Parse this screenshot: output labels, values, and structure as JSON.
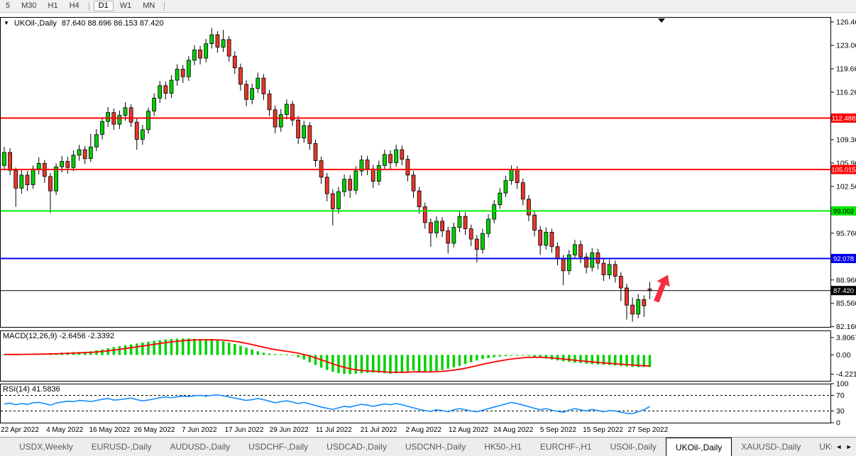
{
  "toolbar": {
    "items": [
      {
        "label": "5"
      },
      {
        "label": "M30"
      },
      {
        "label": "H1"
      },
      {
        "label": "H4"
      },
      {
        "sep": true
      },
      {
        "label": "D1",
        "active": true
      },
      {
        "label": "W1"
      },
      {
        "label": "MN"
      },
      {
        "sep": true
      }
    ]
  },
  "chart_header": {
    "collapse_icon": "▼",
    "symbol": "UKOil-,Daily",
    "ohlc": "87.640 88.696 86.153 87.420"
  },
  "indicators": {
    "macd_label": "MACD(12,26,9) -2.6456 -2.3392",
    "rsi_label": "RSI(14) 41.5836"
  },
  "axes": {
    "price_ticks": [
      "126.460",
      "123.060",
      "119.660",
      "116.260",
      "109.360",
      "105.960",
      "102.560",
      "95.760",
      "88.960",
      "85.560",
      "82.160"
    ],
    "macd_ticks": [
      "3.8067",
      "0.00",
      "-4.221"
    ],
    "rsi_ticks": [
      "100",
      "70",
      "30",
      "0"
    ],
    "date_ticks": [
      "22 Apr 2022",
      "4 May 2022",
      "16 May 2022",
      "26 May 2022",
      "7 Jun 2022",
      "17 Jun 2022",
      "29 Jun 2022",
      "11 Jul 2022",
      "21 Jul 2022",
      "2 Aug 2022",
      "12 Aug 2022",
      "24 Aug 2022",
      "5 Sep 2022",
      "15 Sep 2022",
      "27 Sep 2022"
    ]
  },
  "price_tags": [
    {
      "label": "112.488",
      "value": 112.488,
      "bg": "#ff0000",
      "fg": "#ffffff",
      "line_color": "#ff0000",
      "line_width": 2
    },
    {
      "label": "105.015",
      "value": 105.015,
      "bg": "#ff0000",
      "fg": "#ffffff",
      "line_color": "#ff0000",
      "line_width": 2
    },
    {
      "label": "99.002",
      "value": 99.002,
      "bg": "#00e600",
      "fg": "#000000",
      "line_color": "#00ee00",
      "line_width": 2
    },
    {
      "label": "92.078",
      "value": 92.078,
      "bg": "#0000ee",
      "fg": "#ffffff",
      "line_color": "#0000ee",
      "line_width": 2
    },
    {
      "label": "87.420",
      "value": 87.42,
      "bg": "#000000",
      "fg": "#ffffff",
      "line_color": "#000000",
      "line_width": 1
    }
  ],
  "chart_data": {
    "type": "candlestick",
    "title": "UKOil-,Daily",
    "current_ohlc": {
      "open": 87.64,
      "high": 88.696,
      "low": 86.153,
      "close": 87.42
    },
    "y_range": [
      82.16,
      126.46
    ],
    "candles": [
      [
        105.6,
        108.3,
        104.9,
        107.5
      ],
      [
        107.5,
        108.1,
        104.2,
        104.9
      ],
      [
        104.9,
        105.3,
        99.6,
        102.3
      ],
      [
        102.3,
        104.9,
        101.5,
        104.2
      ],
      [
        104.2,
        104.8,
        101.9,
        102.8
      ],
      [
        102.8,
        105.6,
        102.2,
        105.1
      ],
      [
        105.1,
        106.8,
        104.3,
        105.9
      ],
      [
        105.9,
        106.4,
        103.1,
        104.0
      ],
      [
        104.0,
        104.5,
        98.7,
        101.9
      ],
      [
        101.9,
        105.9,
        101.3,
        105.4
      ],
      [
        105.4,
        107.0,
        104.6,
        106.2
      ],
      [
        106.2,
        106.9,
        104.4,
        105.3
      ],
      [
        105.3,
        107.8,
        104.8,
        107.1
      ],
      [
        107.1,
        108.6,
        106.3,
        107.9
      ],
      [
        107.9,
        108.4,
        105.8,
        106.6
      ],
      [
        106.6,
        110.2,
        106.1,
        108.3
      ],
      [
        108.3,
        110.9,
        107.7,
        110.1
      ],
      [
        110.1,
        112.6,
        109.4,
        112.0
      ],
      [
        112.0,
        114.1,
        111.2,
        113.3
      ],
      [
        113.3,
        113.9,
        110.8,
        111.6
      ],
      [
        111.6,
        113.6,
        110.9,
        112.9
      ],
      [
        112.9,
        114.8,
        112.1,
        114.0
      ],
      [
        114.0,
        114.5,
        111.2,
        111.9
      ],
      [
        111.9,
        112.4,
        107.9,
        109.4
      ],
      [
        109.4,
        111.5,
        108.6,
        110.8
      ],
      [
        110.8,
        114.0,
        110.2,
        113.5
      ],
      [
        113.5,
        116.1,
        112.8,
        115.4
      ],
      [
        115.4,
        117.9,
        114.7,
        117.2
      ],
      [
        117.2,
        117.8,
        115.2,
        116.1
      ],
      [
        116.1,
        118.7,
        115.4,
        118.0
      ],
      [
        118.0,
        120.3,
        117.2,
        119.6
      ],
      [
        119.6,
        120.2,
        117.6,
        118.5
      ],
      [
        118.5,
        121.5,
        117.9,
        120.9
      ],
      [
        120.9,
        123.1,
        120.2,
        122.4
      ],
      [
        122.4,
        123.0,
        120.3,
        121.2
      ],
      [
        121.2,
        124.0,
        120.6,
        123.3
      ],
      [
        123.3,
        125.6,
        122.6,
        124.6
      ],
      [
        124.6,
        125.1,
        122.0,
        122.8
      ],
      [
        122.8,
        125.3,
        122.1,
        123.9
      ],
      [
        123.9,
        124.4,
        120.7,
        121.5
      ],
      [
        121.5,
        122.2,
        118.9,
        119.8
      ],
      [
        119.8,
        120.4,
        116.5,
        117.4
      ],
      [
        117.4,
        118.0,
        114.2,
        115.2
      ],
      [
        115.2,
        117.5,
        114.5,
        116.8
      ],
      [
        116.8,
        119.1,
        116.1,
        118.3
      ],
      [
        118.3,
        118.9,
        115.1,
        116.0
      ],
      [
        116.0,
        116.6,
        112.8,
        113.7
      ],
      [
        113.7,
        114.3,
        110.3,
        111.2
      ],
      [
        111.2,
        113.8,
        110.5,
        113.0
      ],
      [
        113.0,
        115.2,
        112.3,
        114.5
      ],
      [
        114.5,
        115.0,
        111.4,
        112.2
      ],
      [
        112.2,
        112.8,
        108.7,
        109.6
      ],
      [
        109.6,
        112.1,
        108.9,
        111.4
      ],
      [
        111.4,
        111.9,
        107.9,
        108.8
      ],
      [
        108.8,
        109.4,
        105.4,
        106.3
      ],
      [
        106.3,
        106.9,
        102.9,
        103.9
      ],
      [
        103.9,
        104.5,
        100.4,
        101.5
      ],
      [
        101.5,
        102.1,
        96.9,
        99.3
      ],
      [
        99.3,
        102.5,
        98.6,
        101.8
      ],
      [
        101.8,
        104.3,
        101.1,
        103.6
      ],
      [
        103.6,
        104.2,
        100.9,
        102.0
      ],
      [
        102.0,
        105.5,
        101.4,
        104.8
      ],
      [
        104.8,
        107.1,
        104.1,
        106.4
      ],
      [
        106.4,
        107.0,
        104.2,
        105.1
      ],
      [
        105.1,
        105.7,
        102.3,
        103.3
      ],
      [
        103.3,
        106.3,
        102.7,
        105.6
      ],
      [
        105.6,
        107.9,
        104.9,
        107.2
      ],
      [
        107.2,
        107.8,
        105.1,
        106.0
      ],
      [
        106.0,
        108.6,
        105.4,
        107.9
      ],
      [
        107.9,
        108.5,
        105.6,
        106.5
      ],
      [
        106.5,
        107.1,
        103.3,
        104.2
      ],
      [
        104.2,
        104.8,
        100.9,
        101.9
      ],
      [
        101.9,
        102.5,
        98.6,
        99.6
      ],
      [
        99.6,
        100.2,
        96.4,
        97.3
      ],
      [
        97.3,
        97.9,
        93.8,
        95.8
      ],
      [
        95.8,
        98.2,
        95.1,
        97.5
      ],
      [
        97.5,
        98.1,
        95.2,
        96.1
      ],
      [
        96.1,
        96.7,
        92.8,
        94.3
      ],
      [
        94.3,
        97.3,
        93.7,
        96.6
      ],
      [
        96.6,
        98.9,
        95.9,
        98.2
      ],
      [
        98.2,
        98.8,
        95.5,
        96.4
      ],
      [
        96.4,
        97.0,
        93.9,
        94.9
      ],
      [
        94.9,
        95.5,
        91.5,
        93.4
      ],
      [
        93.4,
        96.4,
        92.8,
        95.7
      ],
      [
        95.7,
        98.5,
        95.1,
        97.8
      ],
      [
        97.8,
        100.6,
        97.2,
        99.9
      ],
      [
        99.9,
        102.3,
        99.3,
        101.6
      ],
      [
        101.6,
        104.1,
        101.0,
        103.4
      ],
      [
        103.4,
        105.6,
        102.8,
        105.0
      ],
      [
        105.0,
        105.5,
        102.2,
        103.1
      ],
      [
        103.1,
        103.7,
        99.8,
        100.7
      ],
      [
        100.7,
        101.3,
        97.5,
        98.4
      ],
      [
        98.4,
        99.0,
        95.3,
        96.2
      ],
      [
        96.2,
        96.8,
        92.6,
        94.0
      ],
      [
        94.0,
        96.6,
        93.4,
        95.9
      ],
      [
        95.9,
        96.4,
        92.9,
        93.8
      ],
      [
        93.8,
        94.4,
        91.1,
        92.0
      ],
      [
        92.0,
        92.6,
        88.2,
        90.3
      ],
      [
        90.3,
        93.3,
        89.7,
        92.6
      ],
      [
        92.6,
        94.8,
        92.0,
        94.1
      ],
      [
        94.1,
        94.7,
        91.4,
        92.3
      ],
      [
        92.3,
        92.9,
        89.9,
        90.8
      ],
      [
        90.8,
        93.6,
        90.2,
        92.9
      ],
      [
        92.9,
        93.5,
        90.5,
        91.4
      ],
      [
        91.4,
        92.0,
        88.8,
        89.7
      ],
      [
        89.7,
        91.9,
        89.1,
        91.2
      ],
      [
        91.2,
        91.8,
        88.6,
        89.5
      ],
      [
        89.5,
        90.1,
        85.9,
        87.8
      ],
      [
        87.8,
        88.4,
        83.2,
        85.3
      ],
      [
        85.3,
        86.4,
        82.9,
        84.0
      ],
      [
        84.0,
        86.9,
        83.4,
        86.1
      ],
      [
        86.1,
        86.7,
        83.6,
        85.2
      ],
      [
        87.64,
        88.696,
        86.153,
        87.42
      ]
    ],
    "macd": {
      "params": [
        12,
        26,
        9
      ],
      "main_value": -2.6456,
      "signal_value": -2.3392,
      "range": [
        -4.221,
        3.8067
      ],
      "histogram": [
        0.1,
        0.12,
        0.1,
        0.15,
        0.2,
        0.25,
        0.2,
        0.3,
        0.35,
        0.4,
        0.5,
        0.55,
        0.6,
        0.65,
        0.7,
        0.8,
        1.0,
        1.2,
        1.45,
        1.7,
        1.9,
        2.1,
        2.3,
        2.5,
        2.7,
        2.9,
        3.1,
        3.25,
        3.4,
        3.5,
        3.55,
        3.6,
        3.6,
        3.55,
        3.5,
        3.4,
        3.3,
        3.15,
        3.0,
        2.7,
        2.4,
        2.0,
        1.6,
        1.2,
        0.8,
        0.5,
        0.3,
        0.2,
        0.15,
        0.1,
        -0.15,
        -0.5,
        -1.0,
        -1.6,
        -2.2,
        -2.8,
        -3.3,
        -3.7,
        -4.0,
        -4.15,
        -4.22,
        -4.1,
        -4.0,
        -3.9,
        -3.85,
        -3.9,
        -4.0,
        -4.1,
        -4.0,
        -3.8,
        -3.6,
        -3.4,
        -3.6,
        -3.8,
        -3.7,
        -3.5,
        -3.3,
        -3.0,
        -2.7,
        -2.4,
        -2.0,
        -1.6,
        -1.2,
        -0.9,
        -0.7,
        -0.5,
        -0.35,
        -0.25,
        -0.15,
        -0.1,
        -0.12,
        -0.2,
        -0.4,
        -0.6,
        -0.8,
        -1.0,
        -1.2,
        -1.4,
        -1.5,
        -1.7,
        -1.8,
        -1.9,
        -2.0,
        -2.1,
        -2.15,
        -2.2,
        -2.3,
        -2.4,
        -2.5,
        -2.6,
        -2.65,
        -2.6,
        -2.6456
      ]
    },
    "rsi": {
      "period": 14,
      "value": 41.5836,
      "levels": [
        70,
        30
      ],
      "values": [
        48,
        50,
        46,
        49,
        47,
        51,
        52,
        49,
        45,
        50,
        53,
        55,
        54,
        57,
        56,
        54,
        57,
        60,
        62,
        58,
        59,
        61,
        63,
        59,
        56,
        58,
        61,
        64,
        66,
        64,
        66,
        68,
        67,
        69,
        70,
        68,
        70,
        71,
        69,
        66,
        63,
        60,
        57,
        59,
        62,
        59,
        55,
        51,
        54,
        56,
        53,
        49,
        52,
        48,
        44,
        40,
        37,
        34,
        38,
        42,
        40,
        44,
        47,
        45,
        42,
        45,
        48,
        46,
        49,
        46,
        42,
        38,
        34,
        31,
        29,
        33,
        31,
        28,
        33,
        36,
        33,
        30,
        28,
        32,
        36,
        40,
        44,
        48,
        52,
        49,
        45,
        41,
        37,
        33,
        36,
        32,
        29,
        27,
        32,
        36,
        33,
        30,
        34,
        31,
        28,
        31,
        30,
        27,
        24,
        23,
        28,
        33,
        41.58
      ]
    }
  },
  "tabs": {
    "items": [
      {
        "label": "USDX,Weekly"
      },
      {
        "label": "EURUSD-,Daily"
      },
      {
        "label": "AUDUSD-,Daily"
      },
      {
        "label": "USDCHF-,Daily"
      },
      {
        "label": "USDCAD-,Daily"
      },
      {
        "label": "USDCNH-,Daily"
      },
      {
        "label": "HK50-,H1"
      },
      {
        "label": "EURCHF-,H1"
      },
      {
        "label": "USOil-,Daily"
      },
      {
        "label": "UKOil-,Daily",
        "active": true
      },
      {
        "label": "XAUUSD-,Daily"
      },
      {
        "label": "UKOil-,Da"
      }
    ],
    "scroll_left": "◄",
    "scroll_right": "►"
  },
  "colors": {
    "bull": "#00ce00",
    "bear": "#e8362a",
    "wick": "#000000",
    "macd_hist": "#00d200",
    "macd_signal": "#ff0000",
    "rsi_line": "#1e90ff",
    "arrow_object": "#f52f43",
    "chrome": "#f0f0f0",
    "background": "#ffffff"
  }
}
